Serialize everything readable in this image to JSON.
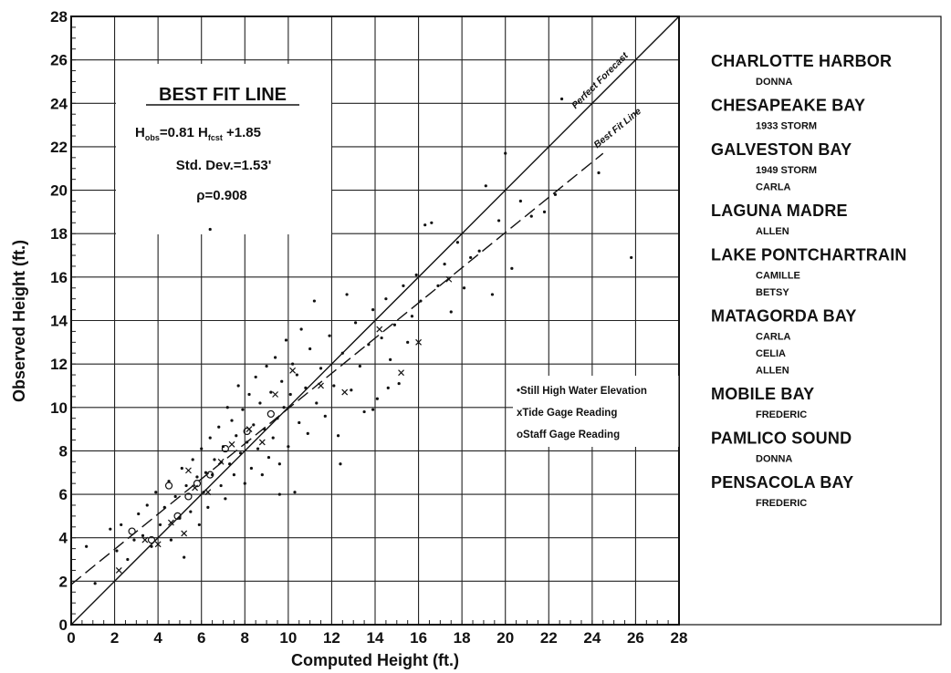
{
  "chart_data": {
    "type": "scatter",
    "xlabel": "Computed Height (ft.)",
    "ylabel": "Observed Height (ft.)",
    "xlim": [
      0,
      28
    ],
    "ylim": [
      0,
      28
    ],
    "x_ticks": [
      "0",
      "2",
      "4",
      "6",
      "8",
      "10",
      "12",
      "14",
      "16",
      "18",
      "20",
      "22",
      "24",
      "26",
      "28"
    ],
    "y_ticks": [
      "0",
      "2",
      "4",
      "6",
      "8",
      "10",
      "12",
      "14",
      "16",
      "18",
      "20",
      "22",
      "24",
      "26",
      "28"
    ],
    "grid": true,
    "fit_box": {
      "title": "BEST FIT LINE",
      "equation_h1": "H",
      "equation_sub1": "obs",
      "equation_mid": "=0.81 H",
      "equation_sub2": "fcst",
      "equation_end": " +1.85",
      "std_dev": "Std. Dev.=1.53'",
      "rho": "ρ=0.908"
    },
    "lines": [
      {
        "name": "Perfect Forecast",
        "slope": 1.0,
        "intercept": 0.0,
        "style": "solid"
      },
      {
        "name": "Best Fit Line",
        "slope": 0.81,
        "intercept": 1.85,
        "style": "dashed"
      }
    ],
    "marker_legend": [
      {
        "symbol": "•",
        "label": "Still High Water Elevation"
      },
      {
        "symbol": "x",
        "label": "Tide Gage Reading"
      },
      {
        "symbol": "o",
        "label": "Staff Gage Reading"
      }
    ],
    "series": [
      {
        "name": "Still High Water Elevation",
        "marker": "dot",
        "points": [
          [
            0.7,
            3.6
          ],
          [
            1.1,
            1.9
          ],
          [
            1.8,
            4.4
          ],
          [
            2.1,
            3.4
          ],
          [
            2.3,
            4.6
          ],
          [
            2.6,
            3.0
          ],
          [
            2.9,
            3.9
          ],
          [
            3.1,
            5.1
          ],
          [
            3.3,
            4.1
          ],
          [
            3.5,
            5.5
          ],
          [
            3.7,
            3.6
          ],
          [
            3.9,
            6.1
          ],
          [
            4.1,
            4.6
          ],
          [
            4.3,
            5.4
          ],
          [
            4.5,
            6.6
          ],
          [
            4.6,
            3.9
          ],
          [
            4.8,
            5.9
          ],
          [
            5.0,
            4.9
          ],
          [
            5.1,
            7.2
          ],
          [
            5.2,
            3.1
          ],
          [
            5.3,
            6.4
          ],
          [
            5.5,
            5.2
          ],
          [
            5.6,
            7.6
          ],
          [
            5.8,
            6.8
          ],
          [
            5.9,
            4.6
          ],
          [
            6.0,
            8.1
          ],
          [
            6.1,
            6.1
          ],
          [
            6.2,
            7.0
          ],
          [
            6.3,
            5.4
          ],
          [
            6.4,
            8.6
          ],
          [
            6.5,
            6.9
          ],
          [
            6.6,
            7.6
          ],
          [
            6.8,
            9.1
          ],
          [
            6.9,
            6.4
          ],
          [
            7.0,
            8.2
          ],
          [
            7.1,
            5.8
          ],
          [
            7.2,
            10.0
          ],
          [
            7.3,
            7.4
          ],
          [
            7.4,
            9.4
          ],
          [
            7.5,
            6.9
          ],
          [
            7.6,
            8.7
          ],
          [
            7.7,
            11.0
          ],
          [
            7.8,
            7.9
          ],
          [
            7.9,
            9.9
          ],
          [
            8.0,
            6.5
          ],
          [
            8.1,
            8.4
          ],
          [
            8.2,
            10.6
          ],
          [
            8.3,
            7.2
          ],
          [
            8.4,
            9.2
          ],
          [
            8.5,
            11.4
          ],
          [
            8.6,
            8.1
          ],
          [
            8.7,
            10.2
          ],
          [
            8.8,
            6.9
          ],
          [
            8.9,
            9.0
          ],
          [
            9.0,
            11.9
          ],
          [
            9.1,
            7.7
          ],
          [
            9.2,
            10.7
          ],
          [
            9.3,
            8.6
          ],
          [
            9.4,
            12.3
          ],
          [
            9.5,
            9.5
          ],
          [
            9.6,
            7.4
          ],
          [
            9.7,
            11.2
          ],
          [
            9.8,
            10.0
          ],
          [
            9.9,
            13.1
          ],
          [
            10.0,
            8.2
          ],
          [
            10.1,
            10.6
          ],
          [
            10.2,
            12.0
          ],
          [
            10.3,
            6.1
          ],
          [
            10.4,
            11.5
          ],
          [
            10.5,
            9.3
          ],
          [
            10.6,
            13.6
          ],
          [
            10.8,
            10.9
          ],
          [
            10.9,
            8.8
          ],
          [
            11.0,
            12.7
          ],
          [
            11.2,
            14.9
          ],
          [
            11.3,
            10.2
          ],
          [
            11.5,
            11.8
          ],
          [
            11.7,
            9.6
          ],
          [
            11.9,
            13.3
          ],
          [
            12.1,
            11.0
          ],
          [
            12.3,
            8.7
          ],
          [
            12.5,
            12.5
          ],
          [
            12.7,
            15.2
          ],
          [
            12.9,
            10.8
          ],
          [
            13.1,
            13.9
          ],
          [
            13.3,
            11.9
          ],
          [
            13.5,
            9.8
          ],
          [
            13.7,
            12.9
          ],
          [
            13.9,
            14.5
          ],
          [
            14.1,
            10.4
          ],
          [
            14.3,
            13.2
          ],
          [
            14.5,
            15.0
          ],
          [
            14.7,
            12.2
          ],
          [
            14.9,
            13.8
          ],
          [
            15.1,
            11.1
          ],
          [
            15.3,
            15.6
          ],
          [
            15.5,
            13.0
          ],
          [
            15.7,
            14.2
          ],
          [
            15.9,
            16.1
          ],
          [
            16.1,
            14.9
          ],
          [
            16.3,
            18.4
          ],
          [
            16.6,
            18.5
          ],
          [
            16.9,
            15.6
          ],
          [
            17.2,
            16.6
          ],
          [
            17.5,
            14.4
          ],
          [
            17.8,
            17.6
          ],
          [
            18.1,
            15.5
          ],
          [
            18.4,
            16.9
          ],
          [
            18.8,
            17.2
          ],
          [
            19.1,
            20.2
          ],
          [
            19.4,
            15.2
          ],
          [
            19.7,
            18.6
          ],
          [
            20.0,
            21.7
          ],
          [
            20.3,
            16.4
          ],
          [
            20.7,
            19.5
          ],
          [
            21.2,
            18.8
          ],
          [
            21.8,
            19.0
          ],
          [
            22.6,
            24.2
          ],
          [
            22.3,
            19.8
          ],
          [
            24.3,
            20.8
          ],
          [
            25.8,
            16.9
          ],
          [
            6.4,
            18.2
          ],
          [
            9.6,
            6.0
          ],
          [
            12.4,
            7.4
          ],
          [
            13.9,
            9.9
          ],
          [
            14.6,
            10.9
          ]
        ]
      },
      {
        "name": "Tide Gage Reading",
        "marker": "x",
        "points": [
          [
            2.2,
            2.5
          ],
          [
            3.4,
            3.9
          ],
          [
            4.0,
            3.7
          ],
          [
            4.6,
            4.7
          ],
          [
            5.2,
            4.2
          ],
          [
            5.4,
            7.1
          ],
          [
            5.7,
            6.3
          ],
          [
            6.3,
            6.1
          ],
          [
            6.9,
            7.5
          ],
          [
            7.4,
            8.3
          ],
          [
            8.2,
            9.0
          ],
          [
            8.8,
            8.4
          ],
          [
            9.4,
            10.6
          ],
          [
            10.2,
            11.7
          ],
          [
            11.5,
            11.0
          ],
          [
            12.6,
            10.7
          ],
          [
            14.2,
            13.6
          ],
          [
            15.2,
            11.6
          ],
          [
            16.0,
            13.0
          ],
          [
            17.4,
            15.9
          ]
        ]
      },
      {
        "name": "Staff Gage Reading",
        "marker": "o",
        "points": [
          [
            2.8,
            4.3
          ],
          [
            3.7,
            3.9
          ],
          [
            4.5,
            6.4
          ],
          [
            4.9,
            5.0
          ],
          [
            5.4,
            5.9
          ],
          [
            5.8,
            6.5
          ],
          [
            6.4,
            6.9
          ],
          [
            7.1,
            8.1
          ],
          [
            8.1,
            8.9
          ],
          [
            9.2,
            9.7
          ]
        ]
      }
    ]
  },
  "sidebar": {
    "locations": [
      {
        "name": "CHARLOTTE HARBOR",
        "storms": [
          "DONNA"
        ]
      },
      {
        "name": "CHESAPEAKE BAY",
        "storms": [
          "1933 STORM"
        ]
      },
      {
        "name": "GALVESTON BAY",
        "storms": [
          "1949 STORM",
          "CARLA"
        ]
      },
      {
        "name": "LAGUNA MADRE",
        "storms": [
          "ALLEN"
        ]
      },
      {
        "name": "LAKE PONTCHARTRAIN",
        "storms": [
          "CAMILLE",
          "BETSY"
        ]
      },
      {
        "name": "MATAGORDA BAY",
        "storms": [
          "CARLA",
          "CELIA",
          "ALLEN"
        ]
      },
      {
        "name": "MOBILE BAY",
        "storms": [
          "FREDERIC"
        ]
      },
      {
        "name": "PAMLICO SOUND",
        "storms": [
          "DONNA"
        ]
      },
      {
        "name": "PENSACOLA BAY",
        "storms": [
          "FREDERIC"
        ]
      }
    ]
  }
}
